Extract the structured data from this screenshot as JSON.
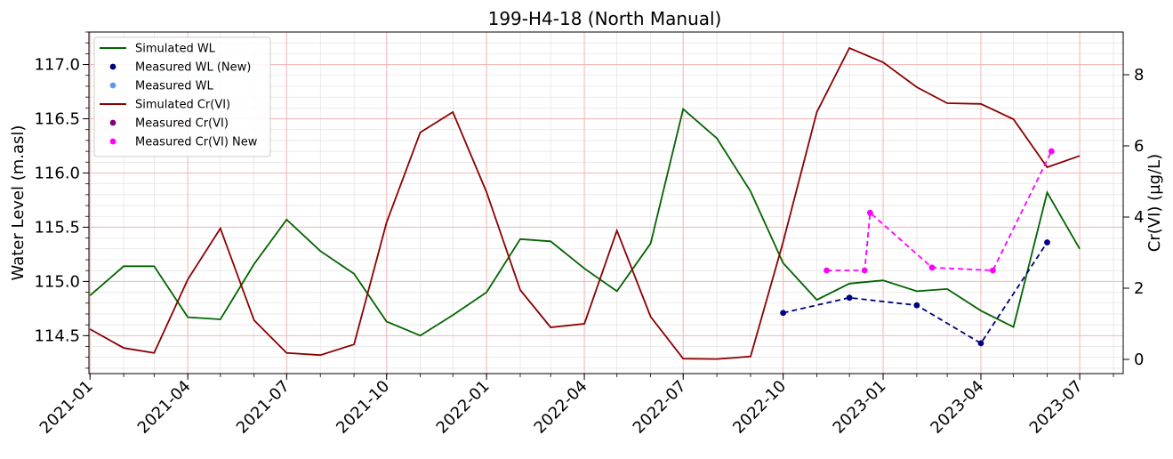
{
  "chart_data": {
    "type": "line",
    "title": "199-H4-18 (North Manual)",
    "ylabel_left": "Water Level (m.asl)",
    "ylabel_right": "Cr(VI) (µg/L)",
    "x_range": [
      "2020-12-31",
      "2023-08-10"
    ],
    "ylim_left": [
      114.15,
      117.3
    ],
    "ylim_right": [
      -0.4,
      9.2
    ],
    "x_ticks": [
      "2021-01",
      "2021-04",
      "2021-07",
      "2021-10",
      "2022-01",
      "2022-04",
      "2022-07",
      "2022-10",
      "2023-01",
      "2023-04",
      "2023-07"
    ],
    "y_ticks_left": [
      "114.5",
      "115.0",
      "115.5",
      "116.0",
      "116.5",
      "117.0"
    ],
    "y_ticks_right": [
      "0",
      "2",
      "4",
      "6",
      "8"
    ],
    "grid": true,
    "legend_position": "top-left",
    "series": [
      {
        "name": "Simulated WL",
        "axis": "left",
        "style": "line",
        "color": "#006400",
        "points": [
          [
            "2021-01-01",
            114.87
          ],
          [
            "2021-02-01",
            115.14
          ],
          [
            "2021-03-01",
            115.14
          ],
          [
            "2021-04-01",
            114.67
          ],
          [
            "2021-05-01",
            114.65
          ],
          [
            "2021-06-01",
            115.16
          ],
          [
            "2021-07-01",
            115.57
          ],
          [
            "2021-08-01",
            115.28
          ],
          [
            "2021-09-01",
            115.07
          ],
          [
            "2021-10-01",
            114.63
          ],
          [
            "2021-11-01",
            114.5
          ],
          [
            "2021-12-01",
            114.69
          ],
          [
            "2022-01-01",
            114.9
          ],
          [
            "2022-02-01",
            115.39
          ],
          [
            "2022-03-01",
            115.37
          ],
          [
            "2022-04-01",
            115.12
          ],
          [
            "2022-05-01",
            114.91
          ],
          [
            "2022-06-01",
            115.35
          ],
          [
            "2022-07-01",
            116.59
          ],
          [
            "2022-08-01",
            116.32
          ],
          [
            "2022-09-01",
            115.83
          ],
          [
            "2022-10-01",
            115.17
          ],
          [
            "2022-11-01",
            114.83
          ],
          [
            "2022-12-01",
            114.98
          ],
          [
            "2023-01-01",
            115.01
          ],
          [
            "2023-02-01",
            114.91
          ],
          [
            "2023-03-01",
            114.93
          ],
          [
            "2023-04-01",
            114.73
          ],
          [
            "2023-05-01",
            114.58
          ],
          [
            "2023-06-01",
            115.82
          ],
          [
            "2023-07-01",
            115.3
          ]
        ]
      },
      {
        "name": "Measured WL (New)",
        "axis": "left",
        "style": "marker-dashed",
        "color": "#000080",
        "points": [
          [
            "2022-10-01",
            114.71
          ],
          [
            "2022-12-01",
            114.85
          ],
          [
            "2023-02-01",
            114.78
          ],
          [
            "2023-04-01",
            114.43
          ],
          [
            "2023-06-01",
            115.36
          ]
        ]
      },
      {
        "name": "Measured WL",
        "axis": "left",
        "style": "marker",
        "color": "#6495ed",
        "points": []
      },
      {
        "name": "Simulated Cr(VI)",
        "axis": "right",
        "style": "line",
        "color": "#8b0000",
        "points": [
          [
            "2021-01-01",
            0.85
          ],
          [
            "2021-02-01",
            0.32
          ],
          [
            "2021-03-01",
            0.18
          ],
          [
            "2021-04-01",
            2.25
          ],
          [
            "2021-05-01",
            3.68
          ],
          [
            "2021-06-01",
            1.1
          ],
          [
            "2021-07-01",
            0.18
          ],
          [
            "2021-08-01",
            0.12
          ],
          [
            "2021-09-01",
            0.42
          ],
          [
            "2021-10-01",
            3.85
          ],
          [
            "2021-11-01",
            6.38
          ],
          [
            "2021-12-01",
            6.95
          ],
          [
            "2022-01-01",
            4.7
          ],
          [
            "2022-02-01",
            1.95
          ],
          [
            "2022-03-01",
            0.9
          ],
          [
            "2022-04-01",
            1.0
          ],
          [
            "2022-05-01",
            3.62
          ],
          [
            "2022-06-01",
            1.2
          ],
          [
            "2022-07-01",
            0.02
          ],
          [
            "2022-08-01",
            0.01
          ],
          [
            "2022-09-01",
            0.08
          ],
          [
            "2022-10-01",
            3.3
          ],
          [
            "2022-11-01",
            6.95
          ],
          [
            "2022-12-01",
            8.75
          ],
          [
            "2023-01-01",
            8.35
          ],
          [
            "2023-02-01",
            7.65
          ],
          [
            "2023-03-01",
            7.2
          ],
          [
            "2023-04-01",
            7.18
          ],
          [
            "2023-05-01",
            6.75
          ],
          [
            "2023-06-01",
            5.4
          ],
          [
            "2023-07-01",
            5.72
          ]
        ]
      },
      {
        "name": "Measured Cr(VI)",
        "axis": "right",
        "style": "marker",
        "color": "#800080",
        "points": []
      },
      {
        "name": "Measured Cr(VI) New",
        "axis": "right",
        "style": "marker-dashed",
        "color": "#ff00ff",
        "points": [
          [
            "2022-11-10",
            2.5
          ],
          [
            "2022-12-15",
            2.5
          ],
          [
            "2022-12-20",
            4.12
          ],
          [
            "2023-02-15",
            2.58
          ],
          [
            "2023-04-12",
            2.5
          ],
          [
            "2023-06-05",
            5.85
          ]
        ]
      }
    ]
  }
}
